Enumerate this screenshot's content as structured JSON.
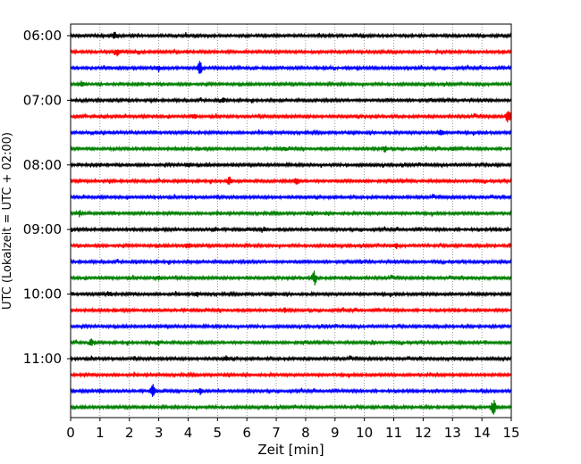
{
  "chart_data": {
    "type": "line",
    "title": "",
    "xlabel": "Zeit  [min]",
    "ylabel": "UTC (Lokalzeit = UTC + 02:00)",
    "xlim": [
      0,
      15
    ],
    "x_ticks": [
      0,
      1,
      2,
      3,
      4,
      5,
      6,
      7,
      8,
      9,
      10,
      11,
      12,
      13,
      14,
      15
    ],
    "x_grid": "dotted vertical lines at each minute",
    "y_tick_labels": [
      "06:00",
      "07:00",
      "08:00",
      "09:00",
      "10:00",
      "11:00"
    ],
    "row_minutes": 15,
    "rows": [
      {
        "start": "06:00",
        "color": "#000000",
        "events": [
          [
            1.5,
            0.4
          ]
        ]
      },
      {
        "start": "06:15",
        "color": "#ff0000",
        "events": [
          [
            1.6,
            0.5
          ]
        ]
      },
      {
        "start": "06:30",
        "color": "#0000ff",
        "events": [
          [
            4.4,
            0.8
          ],
          [
            3.0,
            0.4
          ]
        ]
      },
      {
        "start": "06:45",
        "color": "#008000",
        "events": [
          [
            0.4,
            0.35
          ]
        ]
      },
      {
        "start": "07:00",
        "color": "#000000",
        "events": [
          [
            5.2,
            0.3
          ]
        ]
      },
      {
        "start": "07:15",
        "color": "#ff0000",
        "events": [
          [
            14.9,
            1.0
          ],
          [
            4.2,
            0.3
          ]
        ]
      },
      {
        "start": "07:30",
        "color": "#0000ff",
        "events": [
          [
            12.6,
            0.4
          ]
        ]
      },
      {
        "start": "07:45",
        "color": "#008000",
        "events": [
          [
            10.7,
            0.4
          ],
          [
            7.3,
            0.3
          ],
          [
            13.0,
            0.3
          ]
        ]
      },
      {
        "start": "08:00",
        "color": "#000000",
        "events": [
          [
            4.0,
            0.3
          ]
        ]
      },
      {
        "start": "08:15",
        "color": "#ff0000",
        "events": [
          [
            5.4,
            0.5
          ],
          [
            7.7,
            0.4
          ]
        ]
      },
      {
        "start": "08:30",
        "color": "#0000ff",
        "events": []
      },
      {
        "start": "08:45",
        "color": "#008000",
        "events": [
          [
            0.3,
            0.35
          ]
        ]
      },
      {
        "start": "09:00",
        "color": "#000000",
        "events": [
          [
            4.9,
            0.3
          ],
          [
            6.6,
            0.3
          ]
        ]
      },
      {
        "start": "09:15",
        "color": "#ff0000",
        "events": [
          [
            4.0,
            0.4
          ],
          [
            11.1,
            0.3
          ]
        ]
      },
      {
        "start": "09:30",
        "color": "#0000ff",
        "events": []
      },
      {
        "start": "09:45",
        "color": "#008000",
        "events": [
          [
            8.3,
            0.9
          ],
          [
            3.0,
            0.3
          ]
        ]
      },
      {
        "start": "10:00",
        "color": "#000000",
        "events": [
          [
            1.3,
            0.3
          ],
          [
            4.3,
            0.3
          ]
        ]
      },
      {
        "start": "10:15",
        "color": "#ff0000",
        "events": [
          [
            7.3,
            0.3
          ]
        ]
      },
      {
        "start": "10:30",
        "color": "#0000ff",
        "events": []
      },
      {
        "start": "10:45",
        "color": "#008000",
        "events": [
          [
            0.7,
            0.4
          ],
          [
            3.0,
            0.3
          ],
          [
            10.3,
            0.3
          ]
        ]
      },
      {
        "start": "11:00",
        "color": "#000000",
        "events": [
          [
            5.3,
            0.3
          ]
        ]
      },
      {
        "start": "11:15",
        "color": "#ff0000",
        "events": []
      },
      {
        "start": "11:30",
        "color": "#0000ff",
        "events": [
          [
            2.8,
            0.8
          ],
          [
            4.4,
            0.4
          ],
          [
            1.0,
            0.3
          ]
        ]
      },
      {
        "start": "11:45",
        "color": "#008000",
        "events": [
          [
            14.4,
            1.0
          ]
        ]
      }
    ]
  }
}
